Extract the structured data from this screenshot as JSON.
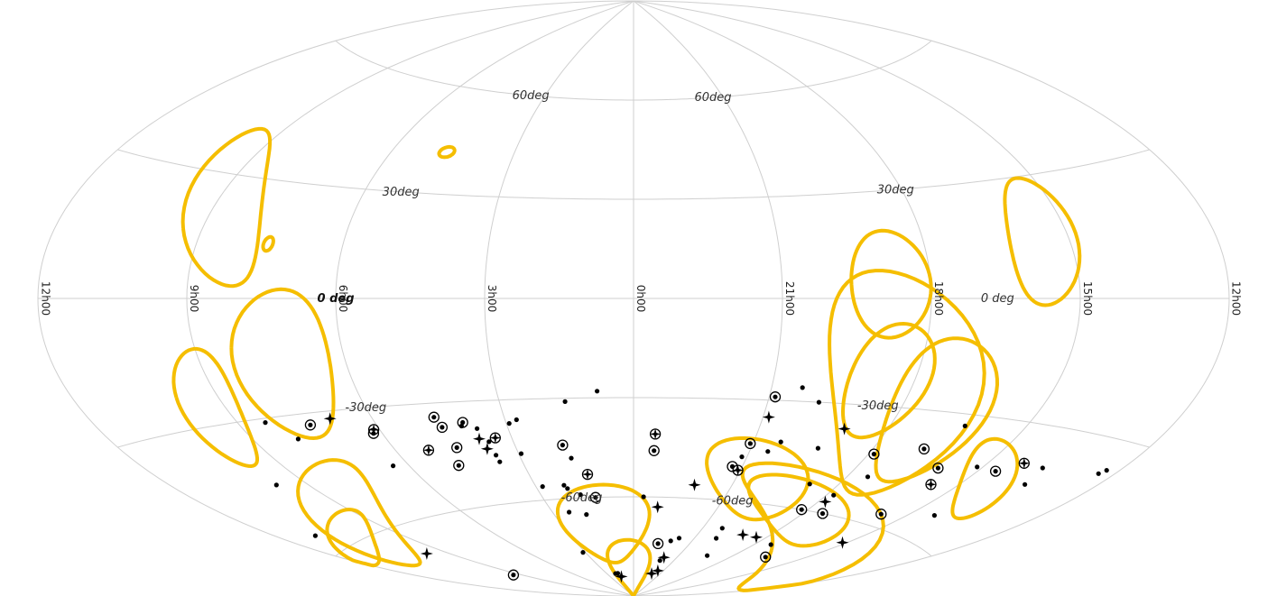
{
  "chart_data": {
    "type": "scatter",
    "projection": "aitoff",
    "frame": "equatorial",
    "grid": true,
    "ra_tick_labels": [
      "12h00",
      "9h00",
      "6h00",
      "3h00",
      "0h00",
      "21h00",
      "18h00",
      "15h00",
      "12h00"
    ],
    "ra_tick_values_deg": [
      180,
      135,
      90,
      45,
      0,
      -45,
      -90,
      -135,
      -180
    ],
    "dec_tick_labels": [
      {
        "text": "60deg",
        "dec": 60,
        "ra": [
          52,
          -40
        ]
      },
      {
        "text": "30deg",
        "dec": 30,
        "ra": [
          78,
          -88
        ]
      },
      {
        "text": "0 deg",
        "dec": 0,
        "ra": [
          90,
          -110
        ],
        "bold": [
          true,
          false
        ]
      },
      {
        "text": "-30deg",
        "dec": -30,
        "ra": [
          90,
          -82
        ]
      },
      {
        "text": "-60deg",
        "dec": -60,
        "ra": [
          26,
          -50
        ]
      }
    ],
    "contour_color": "#f5be00",
    "contours": [
      {
        "ra": 132,
        "dec": 22,
        "a": 10,
        "b": 22,
        "angle": -35
      },
      {
        "ra": 70,
        "dec": 42,
        "a": 2,
        "b": 1.5,
        "angle": 0
      },
      {
        "ra": 113,
        "dec": 14,
        "a": 1.4,
        "b": 1.8,
        "angle": 0
      },
      {
        "ra": 110,
        "dec": -17,
        "a": 14,
        "b": 20,
        "angle": 20
      },
      {
        "ra": 140,
        "dec": -26,
        "a": 8,
        "b": 15,
        "angle": 25
      },
      {
        "ra": 140,
        "dec": -55,
        "a": 7,
        "b": 20,
        "angle": 55
      },
      {
        "ra": 157,
        "dec": -59,
        "a": 3,
        "b": 13,
        "angle": 70
      },
      {
        "ra": 18,
        "dec": -68,
        "a": 10,
        "b": 12,
        "angle": 20
      },
      {
        "ra": -78,
        "dec": 4,
        "a": 12,
        "b": 15,
        "angle": 0
      },
      {
        "ra": -127,
        "dec": 14,
        "a": 10,
        "b": 16,
        "angle": 15
      },
      {
        "ra": -88,
        "dec": -23,
        "a": 20,
        "b": 35,
        "angle": -35
      },
      {
        "ra": -82,
        "dec": -23,
        "a": 12,
        "b": 16,
        "angle": 0
      },
      {
        "ra": -103,
        "dec": -30,
        "a": 14,
        "b": 20,
        "angle": -20
      },
      {
        "ra": -55,
        "dec": -53,
        "a": 9,
        "b": 17,
        "angle": -60
      },
      {
        "ra": -88,
        "dec": -60,
        "a": 6,
        "b": 19,
        "angle": -70
      },
      {
        "ra": -115,
        "dec": -64,
        "a": 8,
        "b": 33,
        "angle": -65
      },
      {
        "ra": -142,
        "dec": -44,
        "a": 5,
        "b": 14,
        "angle": -55
      },
      {
        "ra": 5,
        "dec": -84,
        "a": 4,
        "b": 11,
        "angle": 0
      }
    ],
    "dots": [
      [
        126,
        -31
      ],
      [
        120,
        -36
      ],
      [
        146,
        -45
      ],
      [
        167,
        -56
      ],
      [
        96,
        -46
      ],
      [
        61,
        -37
      ],
      [
        56,
        -38
      ],
      [
        54,
        -42
      ],
      [
        54,
        -46
      ],
      [
        54,
        -48
      ],
      [
        41,
        -36
      ],
      [
        44,
        -37
      ],
      [
        44,
        -46
      ],
      [
        42,
        -56
      ],
      [
        25,
        -48
      ],
      [
        23,
        -31
      ],
      [
        12,
        -28
      ],
      [
        36,
        -64
      ],
      [
        32,
        -56
      ],
      [
        31,
        -57
      ],
      [
        26,
        -59
      ],
      [
        27,
        -65
      ],
      [
        27,
        -83
      ],
      [
        31,
        -83
      ],
      [
        47,
        -76
      ],
      [
        -5,
        -60
      ],
      [
        -43,
        -47
      ],
      [
        -52,
        -45
      ],
      [
        -34,
        -72
      ],
      [
        -29,
        -73
      ],
      [
        -30,
        -79
      ],
      [
        -62,
        -30
      ],
      [
        -55,
        -42
      ],
      [
        -57,
        -68
      ],
      [
        -60,
        -71
      ],
      [
        -70,
        -43
      ],
      [
        -78,
        -53
      ],
      [
        -70,
        -76
      ],
      [
        -98,
        -49
      ],
      [
        -93,
        -55
      ],
      [
        -100,
        -70
      ],
      [
        -115,
        -33
      ],
      [
        -133,
        -42
      ],
      [
        -145,
        -54
      ],
      [
        -157,
        -43
      ],
      [
        -175,
        -37
      ],
      [
        -176,
        -36
      ],
      [
        -155,
        -39
      ],
      [
        -55,
        -26
      ]
    ],
    "ringed_dots": [
      [
        112,
        -33
      ],
      [
        93,
        -37
      ],
      [
        69,
        -34
      ],
      [
        68,
        -37
      ],
      [
        60,
        -36
      ],
      [
        67,
        -43
      ],
      [
        71,
        -48
      ],
      [
        27,
        -44
      ],
      [
        140,
        -77
      ],
      [
        19,
        -60
      ],
      [
        -8,
        -46
      ],
      [
        -47,
        -29
      ],
      [
        -44,
        -43
      ],
      [
        -41,
        -50
      ],
      [
        -92,
        -43
      ],
      [
        -108,
        -40
      ],
      [
        -87,
        -60
      ],
      [
        -99,
        -60
      ],
      [
        -124,
        -57
      ],
      [
        -141,
        -42
      ],
      [
        -120,
        -44
      ],
      [
        -113,
        -73
      ],
      [
        -20,
        -74
      ]
    ],
    "ringed_crossed_dots": [
      [
        92,
        -36
      ],
      [
        78,
        -43
      ],
      [
        51,
        -41
      ],
      [
        20,
        -53
      ],
      [
        -8,
        -41
      ],
      [
        -44,
        -51
      ],
      [
        -125,
        -48
      ],
      [
        -147,
        -39
      ]
    ],
    "stars": [
      [
        104,
        -32
      ],
      [
        56,
        -44
      ],
      [
        57,
        -41
      ],
      [
        145,
        -67
      ],
      [
        -13,
        -63
      ],
      [
        -28,
        -56
      ],
      [
        -47,
        -35
      ],
      [
        -75,
        -37
      ],
      [
        -74,
        -69
      ],
      [
        -84,
        -69
      ],
      [
        -93,
        -57
      ],
      [
        -133,
        -65
      ],
      [
        -32,
        -78
      ],
      [
        -37,
        -82
      ],
      [
        -31,
        -83
      ],
      [
        24,
        -84
      ]
    ]
  }
}
